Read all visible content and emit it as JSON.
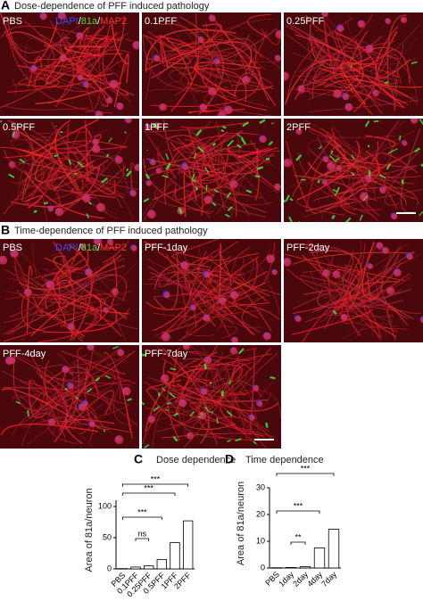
{
  "figure": {
    "panel_a": {
      "letter": "A",
      "title": "Dose-dependence of PFF induced pathology",
      "stain": [
        "DAPI",
        "/",
        "81a",
        "/",
        "MAP2"
      ],
      "images": [
        "PBS",
        "0.1PFF",
        "0.25PFF",
        "0.5PFF",
        "1PFF",
        "2PFF"
      ]
    },
    "panel_b": {
      "letter": "B",
      "title": "Time-dependence of PFF induced pathology",
      "stain": [
        "DAPI",
        "/",
        "81a",
        "/",
        "MAP2"
      ],
      "images": [
        "PBS",
        "PFF-1day",
        "PFF-2day",
        "PFF-4day",
        "PFF-7day"
      ]
    }
  },
  "chart_data": [
    {
      "type": "bar",
      "letter": "C",
      "title": "Dose dependence",
      "y_label": "Area of 81a/neuron",
      "categories": [
        "PBS",
        "0.1PFF",
        "0.25PFF",
        "0.5PFF",
        "1PFF",
        "2PFF"
      ],
      "values": [
        0.5,
        3,
        5,
        15,
        42,
        77
      ],
      "color": "#ffffff",
      "ylim": [
        0,
        110
      ],
      "yticks": [
        0,
        50,
        100
      ],
      "annotations": [
        "***",
        "***",
        "***",
        "ns"
      ]
    },
    {
      "type": "bar",
      "letter": "D",
      "title": "Time dependence",
      "y_label": "Area of 81a/neuron",
      "categories": [
        "PBS",
        "1day",
        "2day",
        "4day",
        "7day"
      ],
      "values": [
        0.1,
        0.2,
        0.5,
        7.5,
        14.5
      ],
      "color": "#ffffff",
      "ylim": [
        0,
        30
      ],
      "yticks": [
        0,
        10,
        20,
        30
      ],
      "annotations": [
        "***",
        "***",
        "**"
      ]
    }
  ]
}
